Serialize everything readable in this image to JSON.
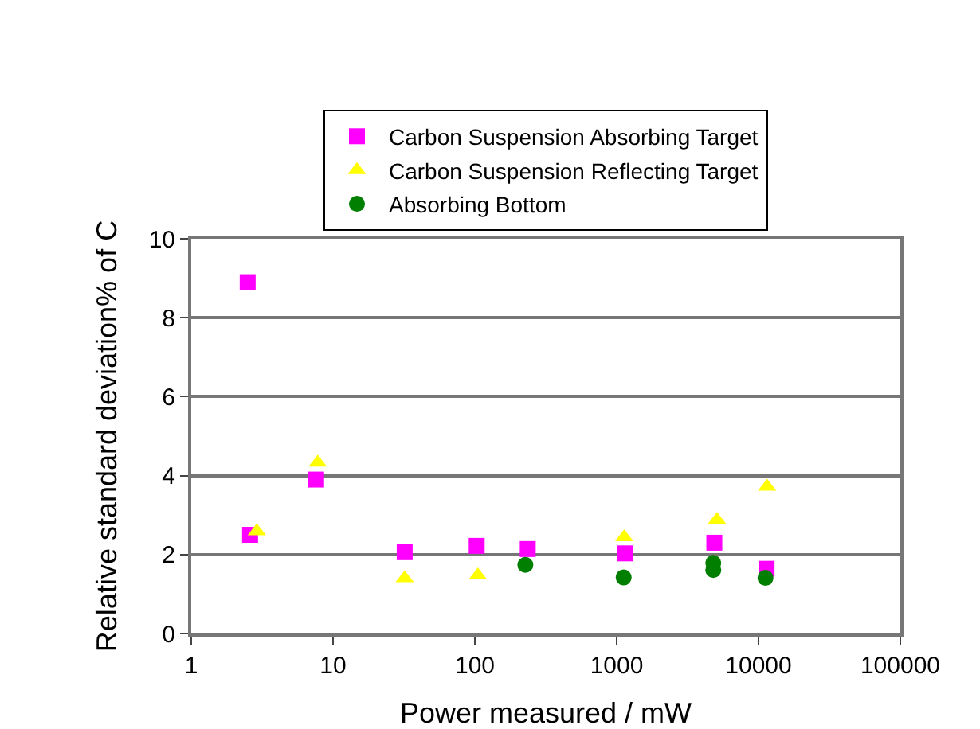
{
  "chart_data": {
    "type": "scatter",
    "xlabel": "Power measured / mW",
    "ylabel": "Relative standard deviation% of C",
    "log": "x",
    "xlim": [
      1,
      100000
    ],
    "xticks": [
      1,
      10,
      100,
      1000,
      10000,
      100000
    ],
    "ylim": [
      0,
      10
    ],
    "yticks": [
      0,
      2,
      4,
      6,
      8,
      10
    ],
    "grid": "y",
    "legend": "top",
    "series": [
      {
        "name": "Carbon Suspension Absorbing Target",
        "color": "#ff00ff",
        "marker": "square",
        "x": [
          2.5,
          2.6,
          7.6,
          32,
          103,
          236,
          1140,
          4880,
          11400
        ],
        "values": [
          8.9,
          2.5,
          3.9,
          2.06,
          2.22,
          2.14,
          2.03,
          2.3,
          1.64
        ]
      },
      {
        "name": "Carbon Suspension Reflecting Target",
        "color": "#ffff00",
        "marker": "triangle",
        "x": [
          2.9,
          7.8,
          32,
          105,
          236,
          1130,
          5100,
          11500
        ],
        "values": [
          2.59,
          4.33,
          1.4,
          1.47,
          null,
          2.44,
          2.88,
          3.72
        ]
      },
      {
        "name": "Absorbing Bottom",
        "color": "#007f00",
        "marker": "circle",
        "x": [
          227,
          1120,
          4800,
          4800,
          11200
        ],
        "values": [
          1.74,
          1.42,
          1.79,
          1.61,
          1.41
        ]
      }
    ]
  }
}
